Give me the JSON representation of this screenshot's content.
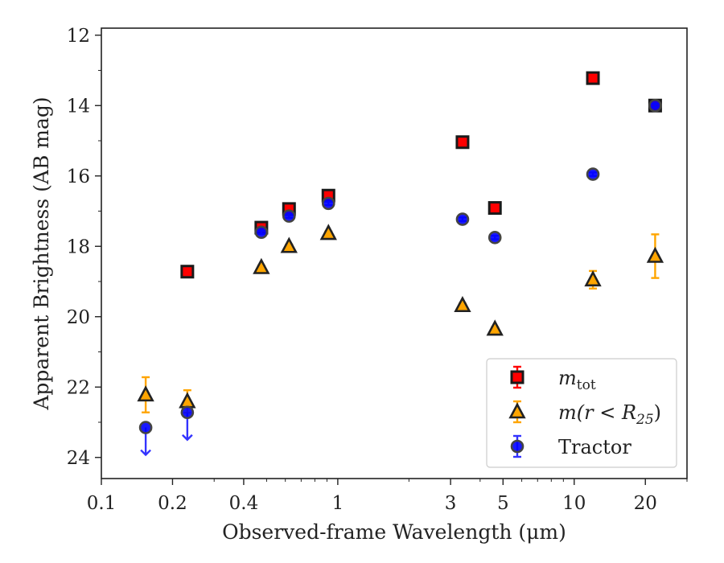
{
  "chart_data": {
    "type": "scatter",
    "xlabel": "Observed-frame Wavelength (μm)",
    "ylabel": "Apparent Brightness (AB mag)",
    "xscale": "log",
    "xlim": [
      0.1,
      30
    ],
    "ylim": [
      24.6,
      11.8
    ],
    "y_inverted": true,
    "grid": false,
    "legend_position": "lower-right",
    "x_ticks": [
      {
        "value": 0.1,
        "label": "0.1"
      },
      {
        "value": 0.2,
        "label": "0.2"
      },
      {
        "value": 0.4,
        "label": "0.4"
      },
      {
        "value": 1,
        "label": "1"
      },
      {
        "value": 3,
        "label": "3"
      },
      {
        "value": 5,
        "label": "5"
      },
      {
        "value": 10,
        "label": "10"
      },
      {
        "value": 20,
        "label": "20"
      }
    ],
    "y_ticks": [
      {
        "value": 12,
        "label": "12"
      },
      {
        "value": 14,
        "label": "14"
      },
      {
        "value": 16,
        "label": "16"
      },
      {
        "value": 18,
        "label": "18"
      },
      {
        "value": 20,
        "label": "20"
      },
      {
        "value": 22,
        "label": "22"
      },
      {
        "value": 24,
        "label": "24"
      }
    ],
    "series": [
      {
        "key": "mtot",
        "legend_main": "m",
        "legend_sub": "tot",
        "marker": "square",
        "color": "#ff0000",
        "edge": "#1a1a1a",
        "ecolor": "#ff0000",
        "points": [
          {
            "x": 0.231,
            "y": 18.72,
            "err": 0.05
          },
          {
            "x": 0.475,
            "y": 17.47,
            "err": 0.06
          },
          {
            "x": 0.622,
            "y": 16.94,
            "err": 0.08
          },
          {
            "x": 0.913,
            "y": 16.56,
            "err": 0.1
          },
          {
            "x": 3.37,
            "y": 15.04,
            "err": 0.05
          },
          {
            "x": 4.62,
            "y": 16.91,
            "err": 0.05
          },
          {
            "x": 12.0,
            "y": 13.22,
            "err": 0.05
          },
          {
            "x": 22.0,
            "y": 14.0,
            "err": 0.05
          }
        ]
      },
      {
        "key": "mr25",
        "legend_main": "m(r < R",
        "legend_sub": "25",
        "legend_tail": ")",
        "marker": "triangle",
        "color": "#ffa500",
        "edge": "#222222",
        "ecolor": "#ffa500",
        "points": [
          {
            "x": 0.154,
            "y": 22.22,
            "err": 0.5
          },
          {
            "x": 0.231,
            "y": 22.41,
            "err": 0.32
          },
          {
            "x": 0.475,
            "y": 18.6,
            "err": 0.05
          },
          {
            "x": 0.622,
            "y": 18.0,
            "err": 0.05
          },
          {
            "x": 0.913,
            "y": 17.63,
            "err": 0.05
          },
          {
            "x": 3.37,
            "y": 19.68,
            "err": 0.05
          },
          {
            "x": 4.62,
            "y": 20.35,
            "err": 0.05
          },
          {
            "x": 12.0,
            "y": 18.95,
            "err": 0.25
          },
          {
            "x": 22.0,
            "y": 18.28,
            "err": 0.62
          }
        ]
      },
      {
        "key": "tractor",
        "legend_main": "Tractor",
        "marker": "circle",
        "color": "#0000ff",
        "edge": "#444444",
        "ecolor": "#3333ff",
        "points": [
          {
            "x": 0.154,
            "y": 23.15,
            "upper_limit": true
          },
          {
            "x": 0.231,
            "y": 22.72,
            "upper_limit": true
          },
          {
            "x": 0.475,
            "y": 17.6,
            "err": 0.05
          },
          {
            "x": 0.622,
            "y": 17.14,
            "err": 0.05
          },
          {
            "x": 0.913,
            "y": 16.78,
            "err": 0.05
          },
          {
            "x": 3.37,
            "y": 17.23,
            "err": 0.05
          },
          {
            "x": 4.62,
            "y": 17.75,
            "err": 0.05
          },
          {
            "x": 12.0,
            "y": 15.95,
            "err": 0.05
          },
          {
            "x": 22.0,
            "y": 14.0,
            "err": 0.05
          }
        ]
      }
    ]
  }
}
